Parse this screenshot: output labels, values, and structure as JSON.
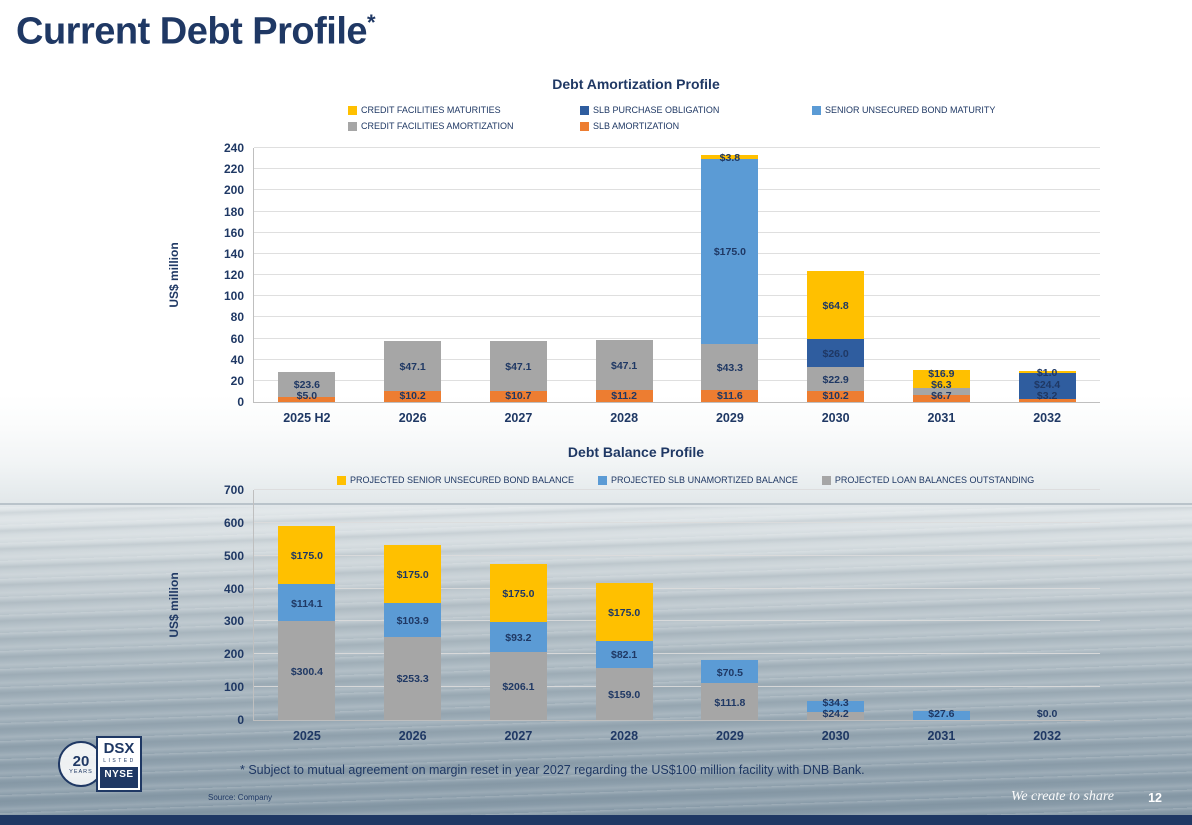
{
  "slide": {
    "title": "Current Debt Profile",
    "title_superscript": "*",
    "footnote": "*  Subject to mutual agreement on margin reset in year 2027 regarding the US$100 million facility with DNB Bank.",
    "source": "Source: Company",
    "tagline": "We create to share",
    "page_number": "12"
  },
  "logo": {
    "years_number": "20",
    "years_word": "YEARS",
    "ticker": "DSX",
    "listed_word": "LISTED",
    "exchange": "NYSE"
  },
  "colors": {
    "text_navy": "#1F3864",
    "footer_bar": "#1F3864",
    "gridline": "#DCDCDC"
  },
  "chart_data": [
    {
      "type": "bar",
      "stacked": true,
      "title": "Debt Amortization Profile",
      "ylabel": "US$ million",
      "ylim": [
        0,
        240
      ],
      "ytick_step": 20,
      "grid": true,
      "legend_position": "top",
      "categories": [
        "2025 H2",
        "2026",
        "2027",
        "2028",
        "2029",
        "2030",
        "2031",
        "2032"
      ],
      "series": [
        {
          "name": "SLB AMORTIZATION",
          "color": "#ED7D31",
          "values": [
            5.0,
            10.2,
            10.7,
            11.2,
            11.6,
            10.2,
            6.7,
            3.2
          ]
        },
        {
          "name": "CREDIT FACILITIES AMORTIZATION",
          "color": "#A6A6A6",
          "values": [
            23.6,
            47.1,
            47.1,
            47.1,
            43.3,
            22.9,
            6.3,
            0
          ]
        },
        {
          "name": "SENIOR UNSECURED BOND MATURITY",
          "color": "#5B9BD5",
          "values": [
            0,
            0,
            0,
            0,
            175.0,
            0,
            0,
            0
          ]
        },
        {
          "name": "SLB PURCHASE OBLIGATION",
          "color": "#2F5D9F",
          "values": [
            0,
            0,
            0,
            0,
            0,
            26.0,
            0,
            24.4
          ]
        },
        {
          "name": "CREDIT FACILITIES MATURITIES",
          "color": "#FFC000",
          "values": [
            0,
            0,
            0,
            0,
            3.8,
            64.8,
            16.9,
            1.0
          ]
        }
      ],
      "legend_rows": [
        [
          "CREDIT FACILITIES MATURITIES",
          "SLB PURCHASE OBLIGATION",
          "SENIOR UNSECURED BOND MATURITY"
        ],
        [
          "CREDIT FACILITIES AMORTIZATION",
          "SLB AMORTIZATION"
        ]
      ]
    },
    {
      "type": "bar",
      "stacked": true,
      "title": "Debt Balance Profile",
      "ylabel": "US$ million",
      "ylim": [
        0,
        700
      ],
      "ytick_step": 100,
      "grid": true,
      "legend_position": "top",
      "categories": [
        "2025",
        "2026",
        "2027",
        "2028",
        "2029",
        "2030",
        "2031",
        "2032"
      ],
      "series": [
        {
          "name": "PROJECTED LOAN BALANCES OUTSTANDING",
          "color": "#A6A6A6",
          "values": [
            300.4,
            253.3,
            206.1,
            159.0,
            111.8,
            24.2,
            0,
            0
          ]
        },
        {
          "name": "PROJECTED SLB UNAMORTIZED BALANCE",
          "color": "#5B9BD5",
          "values": [
            114.1,
            103.9,
            93.2,
            82.1,
            70.5,
            34.3,
            27.6,
            0
          ]
        },
        {
          "name": "PROJECTED SENIOR UNSECURED BOND BALANCE",
          "color": "#FFC000",
          "values": [
            175.0,
            175.0,
            175.0,
            175.0,
            0,
            0,
            0,
            0
          ]
        }
      ],
      "legend_rows": [
        [
          "PROJECTED SENIOR UNSECURED BOND BALANCE",
          "PROJECTED SLB UNAMORTIZED BALANCE",
          "PROJECTED LOAN BALANCES OUTSTANDING"
        ]
      ],
      "annotations": [
        {
          "category_index": 7,
          "text": "$0.0",
          "y": 0
        }
      ]
    }
  ]
}
